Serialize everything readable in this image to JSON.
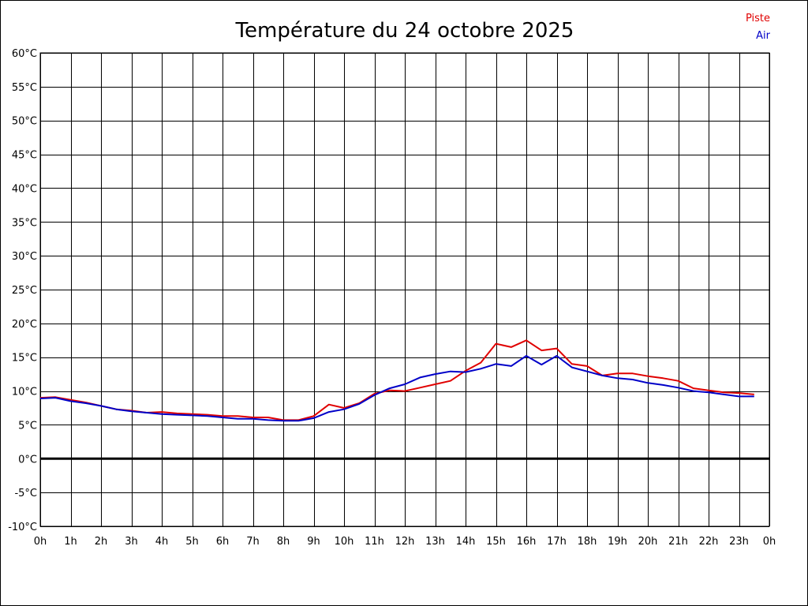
{
  "chart_data": {
    "type": "line",
    "title": "Température du 24 octobre 2025",
    "x_unit": "h",
    "x_ticks": [
      0,
      1,
      2,
      3,
      4,
      5,
      6,
      7,
      8,
      9,
      10,
      11,
      12,
      13,
      14,
      15,
      16,
      17,
      18,
      19,
      20,
      21,
      22,
      23,
      24
    ],
    "x_tick_labels": [
      "0h",
      "1h",
      "2h",
      "3h",
      "4h",
      "5h",
      "6h",
      "7h",
      "8h",
      "9h",
      "10h",
      "11h",
      "12h",
      "13h",
      "14h",
      "15h",
      "16h",
      "17h",
      "18h",
      "19h",
      "20h",
      "21h",
      "22h",
      "23h",
      "0h"
    ],
    "xlim": [
      0,
      24
    ],
    "y_ticks": [
      -10,
      -5,
      0,
      5,
      10,
      15,
      20,
      25,
      30,
      35,
      40,
      45,
      50,
      55,
      60
    ],
    "y_tick_labels": [
      "-10°C",
      "-5°C",
      "0°C",
      "5°C",
      "10°C",
      "15°C",
      "20°C",
      "25°C",
      "30°C",
      "35°C",
      "40°C",
      "45°C",
      "50°C",
      "55°C",
      "60°C"
    ],
    "ylim": [
      -10,
      60
    ],
    "grid": true,
    "zero_line": true,
    "legend_position": "top-right",
    "series": [
      {
        "name": "Piste",
        "color": "#e00000",
        "x": [
          0,
          0.5,
          1,
          1.5,
          2,
          2.5,
          3,
          3.5,
          4,
          4.5,
          5,
          5.5,
          6,
          6.5,
          7,
          7.5,
          8,
          8.5,
          9,
          9.5,
          10,
          10.5,
          11,
          11.5,
          12,
          12.5,
          13,
          13.5,
          14,
          14.5,
          15,
          15.5,
          16,
          16.5,
          17,
          17.5,
          18,
          18.5,
          19,
          19.5,
          20,
          20.5,
          21,
          21.5,
          22,
          22.5,
          23,
          23.5
        ],
        "values": [
          9.0,
          9.1,
          8.7,
          8.3,
          7.8,
          7.3,
          7.1,
          6.8,
          6.9,
          6.7,
          6.6,
          6.5,
          6.3,
          6.3,
          6.1,
          6.1,
          5.7,
          5.7,
          6.3,
          8.0,
          7.5,
          8.2,
          9.6,
          10.1,
          10.0,
          10.5,
          11.0,
          11.5,
          13.0,
          14.2,
          17.0,
          16.5,
          17.5,
          16.0,
          16.3,
          14.0,
          13.7,
          12.3,
          12.6,
          12.6,
          12.2,
          11.9,
          11.5,
          10.4,
          10.1,
          9.8,
          9.7,
          9.5
        ]
      },
      {
        "name": "Air",
        "color": "#0000c8",
        "x": [
          0,
          0.5,
          1,
          1.5,
          2,
          2.5,
          3,
          3.5,
          4,
          4.5,
          5,
          5.5,
          6,
          6.5,
          7,
          7.5,
          8,
          8.5,
          9,
          9.5,
          10,
          10.5,
          11,
          11.5,
          12,
          12.5,
          13,
          13.5,
          14,
          14.5,
          15,
          15.5,
          16,
          16.5,
          17,
          17.5,
          18,
          18.5,
          19,
          19.5,
          20,
          20.5,
          21,
          21.5,
          22,
          22.5,
          23,
          23.5
        ],
        "values": [
          8.9,
          9.0,
          8.5,
          8.2,
          7.8,
          7.3,
          7.0,
          6.8,
          6.6,
          6.5,
          6.4,
          6.3,
          6.1,
          5.9,
          5.9,
          5.7,
          5.6,
          5.6,
          6.0,
          6.9,
          7.3,
          8.1,
          9.4,
          10.4,
          11.0,
          12.0,
          12.5,
          12.9,
          12.8,
          13.3,
          14.0,
          13.7,
          15.2,
          13.9,
          15.2,
          13.5,
          12.9,
          12.3,
          11.9,
          11.7,
          11.2,
          10.9,
          10.5,
          10.0,
          9.8,
          9.5,
          9.2,
          9.2
        ]
      }
    ]
  }
}
